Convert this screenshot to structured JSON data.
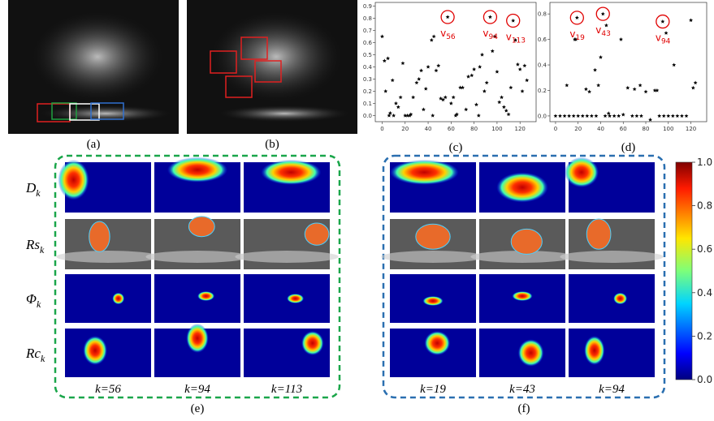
{
  "chart_data": [
    {
      "type": "scatter",
      "caption": "(c)",
      "color": "#000000",
      "highlight_color": "#e00000",
      "x": [
        0,
        2,
        3,
        5,
        6,
        7,
        9,
        10,
        12,
        14,
        16,
        18,
        20,
        22,
        24,
        25,
        27,
        30,
        32,
        34,
        36,
        38,
        40,
        43,
        44,
        45,
        47,
        49,
        51,
        53,
        55,
        57,
        60,
        62,
        64,
        65,
        68,
        70,
        73,
        75,
        78,
        80,
        82,
        84,
        85,
        87,
        89,
        91,
        94,
        96,
        98,
        100,
        102,
        104,
        106,
        108,
        110,
        112,
        114,
        116,
        118,
        120,
        122,
        124,
        126
      ],
      "y": [
        0.65,
        0.45,
        0.2,
        0.47,
        0,
        0.02,
        0.29,
        0,
        0.1,
        0.07,
        0.15,
        0.43,
        0,
        0,
        0,
        0.01,
        0.15,
        0.27,
        0.3,
        0.37,
        0.05,
        0.22,
        0.4,
        0.62,
        0,
        0.65,
        0.37,
        0.41,
        0.14,
        0.13,
        0.15,
        0.81,
        0.1,
        0.15,
        0,
        0.01,
        0.23,
        0.23,
        0.05,
        0.32,
        0.33,
        0.38,
        0.09,
        0,
        0.4,
        0.5,
        0.2,
        0.27,
        0.81,
        0.53,
        0.65,
        0.36,
        0.11,
        0.15,
        0.07,
        0.04,
        0.01,
        0.23,
        0.78,
        0.62,
        0.42,
        0.38,
        0.2,
        0.41,
        0.29
      ],
      "xlim": [
        -6,
        134
      ],
      "ylim": [
        -0.05,
        0.93
      ],
      "xticks": [
        0,
        20,
        40,
        60,
        80,
        100,
        120
      ],
      "yticks": [
        {
          "value": 0,
          "label": "0.0"
        },
        {
          "value": 0.1,
          "label": "0.1"
        },
        {
          "value": 0.2,
          "label": "0.2"
        },
        {
          "value": 0.3,
          "label": "0.3"
        },
        {
          "value": 0.4,
          "label": "0.4"
        },
        {
          "value": 0.5,
          "label": "0.5"
        },
        {
          "value": 0.6,
          "label": "0.6"
        },
        {
          "value": 0.7,
          "label": "0.7"
        },
        {
          "value": 0.8,
          "label": "0.8"
        },
        {
          "value": 0.9,
          "label": "0.9"
        }
      ],
      "highlights": [
        {
          "x": 57,
          "y": 0.81,
          "label": "v",
          "sub": "56"
        },
        {
          "x": 94,
          "y": 0.81,
          "label": "v",
          "sub": "94"
        },
        {
          "x": 114,
          "y": 0.78,
          "label": "v",
          "sub": "113"
        }
      ]
    },
    {
      "type": "scatter",
      "caption": "(d)",
      "color": "#000000",
      "highlight_color": "#e00000",
      "x": [
        0,
        4,
        8,
        10,
        12,
        16,
        17,
        18,
        19,
        20,
        24,
        27,
        28,
        30,
        32,
        35,
        36,
        38,
        40,
        42,
        44,
        45,
        47,
        48,
        52,
        56,
        58,
        60,
        64,
        68,
        70,
        72,
        75,
        76,
        80,
        84,
        88,
        90,
        92,
        95,
        96,
        98,
        100,
        104,
        105,
        108,
        112,
        116,
        120,
        122,
        124
      ],
      "y": [
        0,
        0,
        0,
        0.24,
        0,
        0,
        0.6,
        0.6,
        0.77,
        0,
        0,
        0.21,
        0,
        0.19,
        0,
        0.36,
        0,
        0.24,
        0.46,
        0.8,
        0,
        0.71,
        0.02,
        0,
        0,
        0,
        0.6,
        0.01,
        0.22,
        0,
        0.21,
        0,
        0.24,
        0,
        0.19,
        -0.03,
        0.2,
        0.2,
        0,
        0.74,
        0,
        0.65,
        0,
        0,
        0.4,
        0,
        0,
        0,
        0.75,
        0.22,
        0.26
      ],
      "xlim": [
        -5,
        134
      ],
      "ylim": [
        -0.045,
        0.89
      ],
      "xticks": [
        0,
        20,
        40,
        60,
        80,
        100,
        120
      ],
      "yticks": [
        {
          "value": 0,
          "label": "0.0"
        },
        {
          "value": 0.2,
          "label": "0.2"
        },
        {
          "value": 0.4,
          "label": "0.4"
        },
        {
          "value": 0.6,
          "label": "0.6"
        },
        {
          "value": 0.8,
          "label": "0.8"
        }
      ],
      "highlights": [
        {
          "x": 19,
          "y": 0.77,
          "label": "v",
          "sub": "19"
        },
        {
          "x": 42,
          "y": 0.8,
          "label": "v",
          "sub": "43"
        },
        {
          "x": 95,
          "y": 0.74,
          "label": "v",
          "sub": "94"
        }
      ]
    }
  ],
  "captions": {
    "a": "(a)",
    "b": "(b)",
    "e": "(e)",
    "f": "(f)"
  },
  "row_labels": [
    {
      "base": "D",
      "sub": "k"
    },
    {
      "base": "Rs",
      "sub": "k"
    },
    {
      "base": "Φ",
      "sub": "k"
    },
    {
      "base": "Rc",
      "sub": "k"
    }
  ],
  "groups": [
    {
      "columns": [
        "k=56",
        "k=94",
        "k=113"
      ]
    },
    {
      "columns": [
        "k=19",
        "k=43",
        "k=94"
      ]
    }
  ],
  "colorbar": {
    "ticks": [
      {
        "value": 0,
        "label": "0.0"
      },
      {
        "value": 0.2,
        "label": "0.2"
      },
      {
        "value": 0.4,
        "label": "0.4"
      },
      {
        "value": 0.6,
        "label": "0.6"
      },
      {
        "value": 0.8,
        "label": "0.8"
      },
      {
        "value": 1,
        "label": "1.0"
      }
    ]
  }
}
